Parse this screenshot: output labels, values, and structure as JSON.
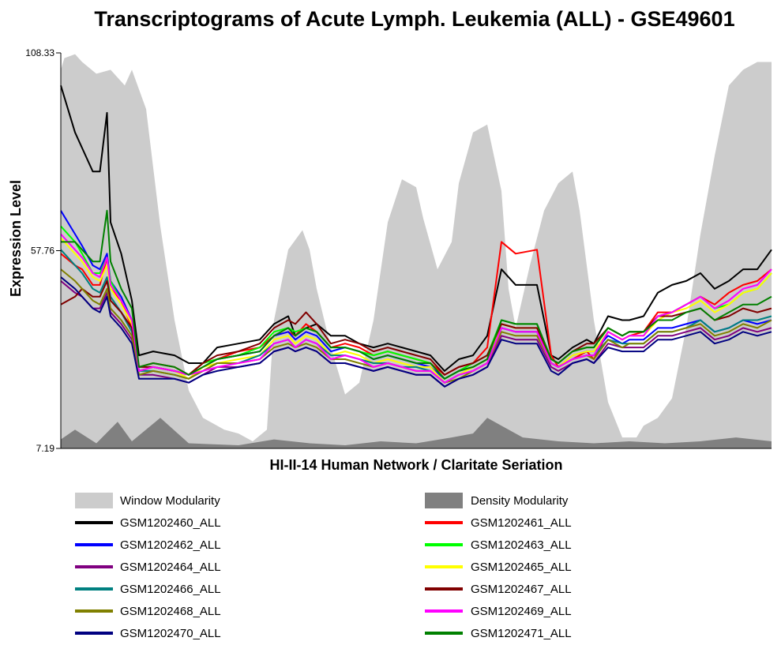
{
  "chart_data": {
    "type": "line",
    "title": "Transcriptograms of Acute Lymph. Leukemia (ALL) - GSE49601",
    "xlabel": "HI-II-14 Human Network / Claritate Seriation",
    "ylabel": "Expression Level",
    "ylim": [
      7.19,
      108.33
    ],
    "yticks": [
      "108.33",
      "57.76",
      "7.19"
    ],
    "x_range": [
      0,
      1
    ],
    "legend_position": "bottom",
    "background_areas": [
      {
        "name": "Window Modularity",
        "color": "#cccccc",
        "x": [
          0,
          0.005,
          0.02,
          0.03,
          0.05,
          0.07,
          0.09,
          0.1,
          0.12,
          0.14,
          0.16,
          0.18,
          0.2,
          0.21,
          0.23,
          0.25,
          0.27,
          0.29,
          0.3,
          0.32,
          0.34,
          0.35,
          0.36,
          0.38,
          0.4,
          0.42,
          0.44,
          0.46,
          0.48,
          0.5,
          0.51,
          0.53,
          0.55,
          0.56,
          0.58,
          0.6,
          0.62,
          0.63,
          0.64,
          0.66,
          0.68,
          0.7,
          0.72,
          0.73,
          0.75,
          0.77,
          0.79,
          0.81,
          0.82,
          0.84,
          0.86,
          0.88,
          0.9,
          0.92,
          0.94,
          0.96,
          0.98,
          1.0
        ],
        "values": [
          104,
          107,
          108,
          106,
          103,
          104,
          100,
          104,
          94,
          64,
          40,
          22,
          15,
          14,
          12,
          11,
          9,
          12,
          40,
          58,
          63,
          58,
          48,
          33,
          21,
          24,
          40,
          65,
          76,
          74,
          66,
          53,
          60,
          75,
          88,
          90,
          73,
          48,
          38,
          54,
          68,
          75,
          78,
          68,
          40,
          19,
          10,
          10,
          13,
          15,
          20,
          38,
          62,
          82,
          100,
          104,
          106,
          106
        ]
      },
      {
        "name": "Density Modularity",
        "color": "#808080",
        "x": [
          0,
          0.02,
          0.05,
          0.08,
          0.1,
          0.14,
          0.18,
          0.25,
          0.3,
          0.35,
          0.4,
          0.45,
          0.5,
          0.55,
          0.58,
          0.6,
          0.62,
          0.65,
          0.7,
          0.75,
          0.8,
          0.85,
          0.9,
          0.95,
          1.0
        ],
        "values": [
          9.5,
          12,
          8.5,
          14,
          9,
          15,
          8.5,
          8,
          9.5,
          8.5,
          8,
          9,
          8.5,
          10,
          11,
          15,
          13,
          10,
          9,
          8.5,
          9,
          8.5,
          9,
          10,
          9
        ]
      }
    ],
    "x": [
      0,
      0.02,
      0.03,
      0.045,
      0.055,
      0.065,
      0.07,
      0.085,
      0.1,
      0.11,
      0.13,
      0.16,
      0.18,
      0.2,
      0.22,
      0.25,
      0.28,
      0.3,
      0.32,
      0.33,
      0.345,
      0.36,
      0.38,
      0.4,
      0.42,
      0.44,
      0.46,
      0.48,
      0.5,
      0.52,
      0.54,
      0.56,
      0.58,
      0.6,
      0.62,
      0.64,
      0.67,
      0.69,
      0.7,
      0.72,
      0.74,
      0.75,
      0.77,
      0.79,
      0.8,
      0.82,
      0.84,
      0.86,
      0.88,
      0.9,
      0.92,
      0.94,
      0.96,
      0.98,
      1.0
    ],
    "series": [
      {
        "name": "GSM1202460_ALL",
        "color": "#000000",
        "values": [
          100,
          88,
          84,
          78,
          78,
          93,
          65,
          57,
          45,
          31,
          32,
          31,
          29,
          29,
          33,
          34,
          35,
          39,
          41,
          36,
          38,
          39,
          36,
          36,
          34,
          33,
          34,
          33,
          32,
          31,
          27,
          30,
          31,
          36,
          53,
          49,
          49,
          31,
          30,
          33,
          35,
          34,
          41,
          40,
          40,
          41,
          47,
          49,
          50,
          52,
          48,
          50,
          53,
          53,
          58
        ]
      },
      {
        "name": "GSM1202461_ALL",
        "color": "#ff0000",
        "values": [
          57,
          54,
          53,
          49,
          49,
          56,
          48,
          45,
          38,
          28,
          29,
          28,
          26,
          29,
          30,
          32,
          33,
          36,
          37,
          36,
          39,
          37,
          33,
          34,
          33,
          31,
          32,
          31,
          30,
          29,
          26,
          28,
          29,
          33,
          60,
          57,
          58,
          31,
          28,
          30,
          32,
          30,
          37,
          35,
          36,
          37,
          42,
          42,
          44,
          46,
          44,
          47,
          49,
          50,
          53
        ]
      },
      {
        "name": "GSM1202462_ALL",
        "color": "#0000ff",
        "values": [
          68,
          62,
          59,
          54,
          53,
          57,
          50,
          46,
          40,
          27,
          28,
          27,
          26,
          28,
          30,
          31,
          32,
          36,
          37,
          35,
          37,
          36,
          32,
          33,
          32,
          30,
          31,
          30,
          29,
          28,
          25,
          27,
          28,
          30,
          38,
          37,
          37,
          29,
          28,
          31,
          32,
          32,
          36,
          34,
          35,
          35,
          38,
          38,
          39,
          40,
          37,
          38,
          40,
          39,
          40
        ]
      },
      {
        "name": "GSM1202463_ALL",
        "color": "#00ff00",
        "values": [
          64,
          60,
          57,
          52,
          52,
          56,
          50,
          45,
          40,
          27,
          28,
          27,
          26,
          29,
          30,
          31,
          33,
          37,
          38,
          37,
          38,
          37,
          33,
          33,
          32,
          31,
          32,
          31,
          30,
          29,
          25,
          27,
          29,
          31,
          40,
          39,
          39,
          30,
          29,
          32,
          33,
          33,
          38,
          36,
          37,
          37,
          41,
          42,
          44,
          46,
          43,
          44,
          47,
          48,
          52
        ]
      },
      {
        "name": "GSM1202464_ALL",
        "color": "#800080",
        "values": [
          50,
          47,
          46,
          43,
          43,
          47,
          42,
          39,
          35,
          26,
          26,
          25,
          24,
          26,
          28,
          28,
          29,
          32,
          33,
          32,
          33,
          32,
          29,
          29,
          28,
          27,
          28,
          27,
          26,
          26,
          23,
          25,
          26,
          28,
          36,
          35,
          35,
          28,
          27,
          29,
          30,
          29,
          34,
          33,
          33,
          33,
          36,
          36,
          37,
          38,
          35,
          36,
          38,
          37,
          38
        ]
      },
      {
        "name": "GSM1202465_ALL",
        "color": "#ffff00",
        "values": [
          61,
          57,
          55,
          51,
          50,
          54,
          48,
          44,
          39,
          27,
          28,
          27,
          25,
          28,
          29,
          30,
          31,
          35,
          36,
          34,
          36,
          35,
          31,
          32,
          31,
          29,
          30,
          29,
          28,
          28,
          24,
          26,
          28,
          30,
          39,
          38,
          38,
          29,
          28,
          31,
          32,
          32,
          37,
          35,
          36,
          36,
          40,
          42,
          43,
          45,
          42,
          44,
          47,
          48,
          52
        ]
      },
      {
        "name": "GSM1202466_ALL",
        "color": "#008080",
        "values": [
          58,
          54,
          52,
          48,
          47,
          51,
          46,
          42,
          37,
          27,
          27,
          26,
          25,
          27,
          29,
          29,
          31,
          34,
          35,
          33,
          35,
          34,
          31,
          31,
          30,
          29,
          29,
          28,
          28,
          27,
          24,
          26,
          27,
          29,
          38,
          37,
          37,
          29,
          28,
          30,
          31,
          31,
          35,
          34,
          34,
          34,
          37,
          37,
          38,
          40,
          37,
          38,
          40,
          40,
          41
        ]
      },
      {
        "name": "GSM1202467_ALL",
        "color": "#800000",
        "values": [
          44,
          46,
          48,
          46,
          46,
          50,
          45,
          42,
          38,
          28,
          28,
          27,
          26,
          29,
          31,
          32,
          34,
          38,
          40,
          39,
          42,
          39,
          34,
          35,
          34,
          32,
          33,
          32,
          31,
          30,
          26,
          28,
          29,
          31,
          39,
          38,
          38,
          30,
          29,
          32,
          34,
          34,
          38,
          36,
          37,
          37,
          41,
          41,
          42,
          43,
          40,
          41,
          43,
          42,
          43
        ]
      },
      {
        "name": "GSM1202468_ALL",
        "color": "#808000",
        "values": [
          53,
          50,
          48,
          45,
          44,
          48,
          43,
          40,
          36,
          26,
          27,
          26,
          25,
          27,
          29,
          29,
          30,
          33,
          34,
          33,
          34,
          33,
          30,
          30,
          29,
          28,
          29,
          28,
          27,
          27,
          24,
          25,
          27,
          29,
          37,
          36,
          36,
          29,
          28,
          30,
          31,
          30,
          35,
          33,
          34,
          34,
          37,
          37,
          38,
          39,
          36,
          37,
          39,
          38,
          40
        ]
      },
      {
        "name": "GSM1202469_ALL",
        "color": "#ff00ff",
        "values": [
          62,
          58,
          56,
          52,
          51,
          56,
          49,
          45,
          40,
          27,
          28,
          27,
          26,
          27,
          28,
          29,
          30,
          34,
          35,
          33,
          35,
          34,
          30,
          31,
          30,
          28,
          29,
          28,
          27,
          27,
          24,
          26,
          27,
          29,
          38,
          37,
          37,
          29,
          28,
          30,
          31,
          31,
          37,
          35,
          36,
          36,
          41,
          42,
          44,
          46,
          43,
          45,
          48,
          49,
          53
        ]
      },
      {
        "name": "GSM1202470_ALL",
        "color": "#000080",
        "values": [
          51,
          48,
          46,
          43,
          42,
          46,
          41,
          38,
          34,
          25,
          25,
          25,
          24,
          26,
          27,
          28,
          29,
          32,
          33,
          32,
          33,
          32,
          29,
          29,
          28,
          27,
          28,
          27,
          26,
          26,
          23,
          25,
          26,
          28,
          35,
          34,
          34,
          27,
          26,
          29,
          30,
          29,
          33,
          32,
          32,
          32,
          35,
          35,
          36,
          37,
          34,
          35,
          37,
          36,
          37
        ]
      },
      {
        "name": "GSM1202471_ALL",
        "color": "#008000",
        "values": [
          60,
          60,
          58,
          55,
          55,
          68,
          55,
          48,
          43,
          28,
          29,
          28,
          26,
          28,
          30,
          31,
          32,
          36,
          38,
          36,
          38,
          37,
          33,
          33,
          32,
          30,
          31,
          30,
          29,
          29,
          25,
          27,
          28,
          30,
          40,
          39,
          39,
          30,
          29,
          32,
          33,
          33,
          38,
          36,
          37,
          37,
          40,
          40,
          42,
          43,
          40,
          42,
          44,
          44,
          46
        ]
      }
    ]
  },
  "legend": {
    "left": [
      {
        "label": "Window Modularity",
        "color": "#cccccc",
        "kind": "area"
      },
      {
        "label": "GSM1202460_ALL",
        "color": "#000000",
        "kind": "line"
      },
      {
        "label": "GSM1202462_ALL",
        "color": "#0000ff",
        "kind": "line"
      },
      {
        "label": "GSM1202464_ALL",
        "color": "#800080",
        "kind": "line"
      },
      {
        "label": "GSM1202466_ALL",
        "color": "#008080",
        "kind": "line"
      },
      {
        "label": "GSM1202468_ALL",
        "color": "#808000",
        "kind": "line"
      },
      {
        "label": "GSM1202470_ALL",
        "color": "#000080",
        "kind": "line"
      }
    ],
    "right": [
      {
        "label": "Density Modularity",
        "color": "#808080",
        "kind": "area"
      },
      {
        "label": "GSM1202461_ALL",
        "color": "#ff0000",
        "kind": "line"
      },
      {
        "label": "GSM1202463_ALL",
        "color": "#00ff00",
        "kind": "line"
      },
      {
        "label": "GSM1202465_ALL",
        "color": "#ffff00",
        "kind": "line"
      },
      {
        "label": "GSM1202467_ALL",
        "color": "#800000",
        "kind": "line"
      },
      {
        "label": "GSM1202469_ALL",
        "color": "#ff00ff",
        "kind": "line"
      },
      {
        "label": "GSM1202471_ALL",
        "color": "#008000",
        "kind": "line"
      }
    ]
  }
}
